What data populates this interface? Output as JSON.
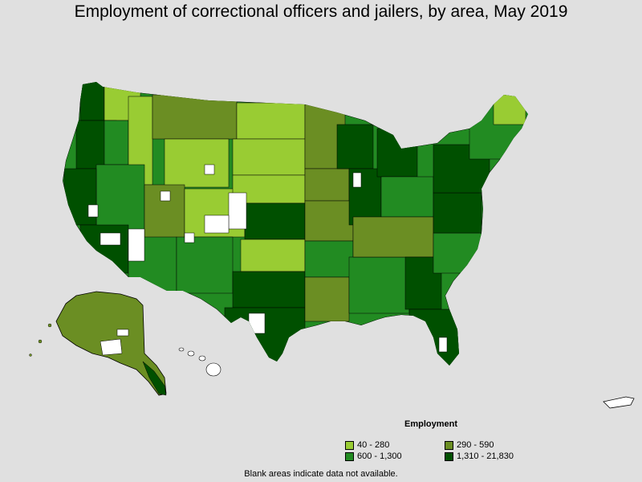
{
  "title": "Employment of correctional officers and jailers, by area, May 2019",
  "legend": {
    "heading": "Employment",
    "items": [
      {
        "label": "40 - 280",
        "color": "#99cc33"
      },
      {
        "label": "290 - 590",
        "color": "#6b8e23"
      },
      {
        "label": "600 - 1,300",
        "color": "#228b22"
      },
      {
        "label": "1,310 - 21,830",
        "color": "#005000"
      }
    ]
  },
  "footnote": "Blank areas indicate data not available.",
  "colors": {
    "background": "#e0e0e0",
    "no_data": "#ffffff",
    "border": "#000000"
  }
}
